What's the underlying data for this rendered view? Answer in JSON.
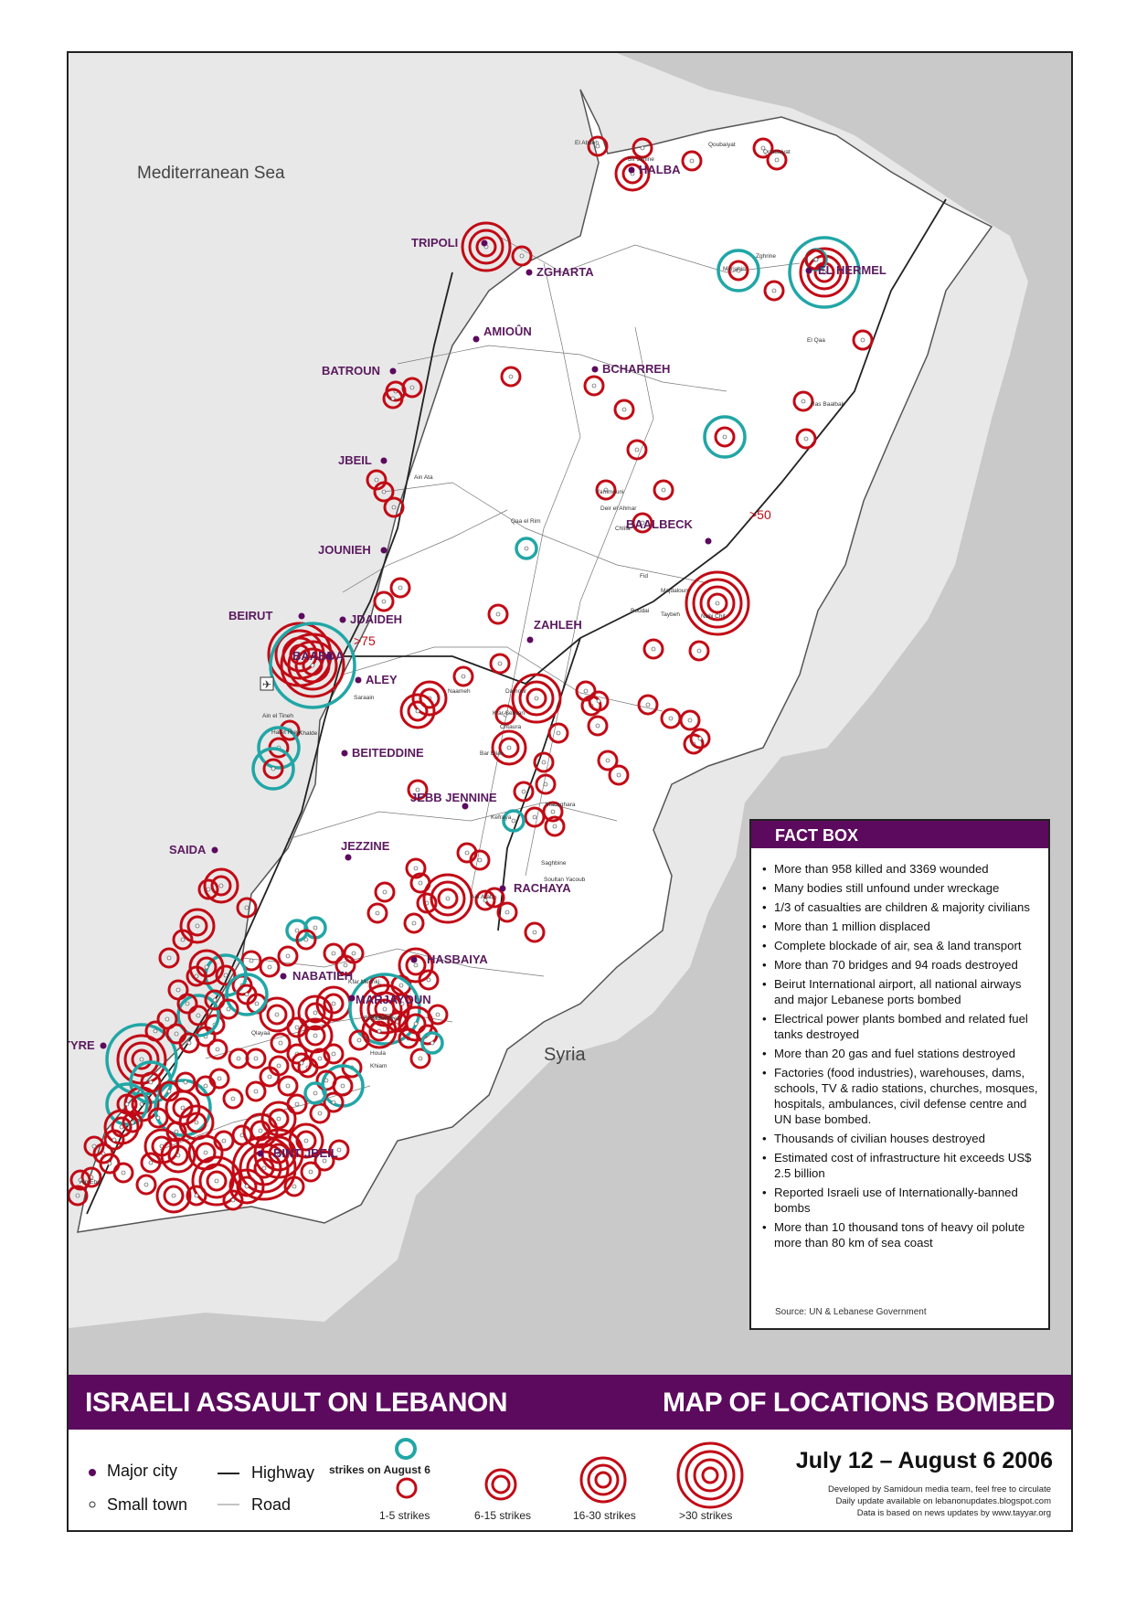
{
  "colors": {
    "strike": "#c10a15",
    "today": "#22a6a6",
    "purple": "#5c0a5e",
    "sea": "#e8e8e8",
    "neighbour": "#c9c9c9"
  },
  "map": {
    "regions": [
      "Mediterranean Sea",
      "Syria"
    ],
    "major_cities": [
      "TRIPOLI",
      "ZGHARTA",
      "HALBA",
      "EL HERMEL",
      "AMIOÛN",
      "BCHARREH",
      "BATROUN",
      "JBEIL",
      "JOUNIEH",
      "BAALBECK",
      "BEIRUT",
      "JDAIDEH",
      "BAABDA",
      "ALEY",
      "ZAHLEH",
      "BEITEDDINE",
      "JEBB JENNINE",
      "SAIDA",
      "JEZZINE",
      "RACHAYA",
      "HASBAIYA",
      "NABATIEH",
      "MARJAYOUN",
      "TYRE",
      "BINT JBEIL"
    ],
    "small_towns": [
      "El Abdeh",
      "Qoubaiyat",
      "Bir Janine",
      "Qoubaiyat",
      "Marjahin",
      "Zghrine",
      "El Qaa",
      "Ras Baalbak",
      "Yammouni",
      "Deir el Ahmar",
      "Chlifa",
      "Qaa el Rim",
      "Ain Ata",
      "Fid",
      "Majdaloun",
      "Taybeh",
      "Boudai",
      "Nabi Chit",
      "Saraain",
      "Ain el Tineh",
      "Haret Hreik",
      "Khalde",
      "Naameh",
      "Damour",
      "Kfar Selwan",
      "Chtaura",
      "Bar Elias",
      "Kefraya",
      "Machghara",
      "Saghbine",
      "Soultan Yacoub",
      "Ain Arab",
      "Kfar Mechki",
      "Ain Ebel",
      "Qlayaa",
      "Naqoura",
      "El Bazouriyeh",
      "Houla",
      "Khiam"
    ],
    "annotations": [
      ">50",
      ">75"
    ]
  },
  "factbox": {
    "title": "FACT BOX",
    "items": [
      "More than 958 killed and 3369 wounded",
      "Many bodies still unfound under wreckage",
      "1/3 of casualties are children & majority civilians",
      "More than 1 million displaced",
      "Complete blockade of air, sea & land transport",
      "More than 70 bridges and 94 roads destroyed",
      "Beirut International airport, all national airways and major Lebanese ports bombed",
      "Electrical power plants bombed and related fuel tanks destroyed",
      "More than 20 gas and fuel stations destroyed",
      "Factories (food industries), warehouses, dams, schools, TV & radio stations, churches, mosques, hospitals, ambulances, civil defense centre and UN base bombed.",
      "Thousands of civilian houses destroyed",
      "Estimated cost of infrastructure hit exceeds US$ 2.5 billion",
      "Reported Israeli use of Internationally-banned bombs",
      "More than 10 thousand tons of heavy oil polute more than 80 km of sea coast"
    ],
    "source": "Source: UN & Lebanese Government"
  },
  "title": {
    "left": "ISRAELI ASSAULT ON LEBANON",
    "right": "MAP OF LOCATIONS BOMBED"
  },
  "legend": {
    "major_city": "Major city",
    "small_town": "Small town",
    "highway": "Highway",
    "road": "Road",
    "today": "strikes on August 6",
    "s1": "1-5 strikes",
    "s2": "6-15 strikes",
    "s3": "16-30 strikes",
    "s4": ">30 strikes",
    "dates": "July 12 – August 6 2006",
    "credit1": "Developed by Samidoun media team, feel free to circulate",
    "credit2": "Daily update available on lebanonupdates.blogspot.com",
    "credit3": "Data is based on news updates by www.tayyar.org"
  }
}
